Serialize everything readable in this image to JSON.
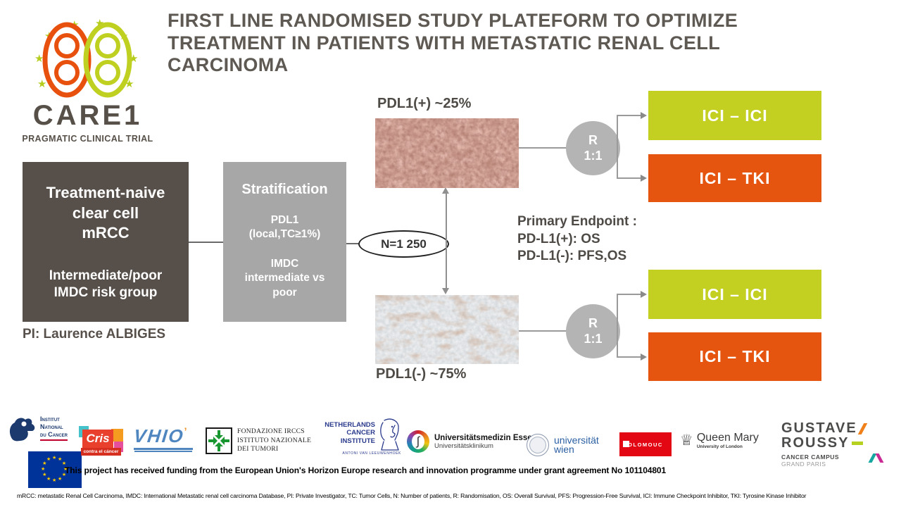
{
  "title": "FIRST LINE RANDOMISED STUDY PLATEFORM TO OPTIMIZE\nTREATMENT IN PATIENTS WITH METASTATIC RENAL CELL\nCARCINOMA",
  "care1": {
    "wordmark": "CARE1",
    "tagline": "PRAGMATIC CLINICAL TRIAL"
  },
  "flow": {
    "population": {
      "title": "Treatment-naive\nclear cell\nmRCC",
      "subtitle": "Intermediate/poor\nIMDC risk group"
    },
    "pi": "PI: Laurence ALBIGES",
    "stratification": {
      "title": "Stratification",
      "factor1": "PDL1\n(local,TC≥1%)",
      "factor2": "IMDC\nintermediate vs\npoor"
    },
    "sample_size": "N=1 250",
    "pdl1_positive": {
      "label": "PDL1(+) ~25%",
      "randomization": "R\n1:1",
      "arm1": "ICI – ICI",
      "arm2": "ICI – TKI"
    },
    "pdl1_negative": {
      "label": "PDL1(-) ~75%",
      "randomization": "R\n1:1",
      "arm1": "ICI – ICI",
      "arm2": "ICI – TKI"
    },
    "endpoint": "Primary Endpoint :\nPD-L1(+): OS\nPD-L1(-): PFS,OS",
    "colors": {
      "arm_ici_ici": "#c3d021",
      "arm_ici_tki": "#e65510",
      "population_box": "#57504a",
      "stratification_box": "#a7a7a7",
      "randomization_circle": "#b4b4b4",
      "title_text": "#5e5952"
    }
  },
  "partners": {
    "inca": {
      "line1": "Institut",
      "line2": "National",
      "line3": "du Cancer"
    },
    "cris": {
      "wordmark": "Cris",
      "tagline": "contra el cáncer"
    },
    "vhio": {
      "wordmark": "VHIO"
    },
    "int_milano": {
      "line1": "FONDAZIONE IRCCS",
      "line2": "ISTITUTO NAZIONALE",
      "line3": "DEI TUMORI"
    },
    "nki": {
      "line1": "NETHERLANDS",
      "line2": "CANCER",
      "line3": "INSTITUTE",
      "sub": "ANTONI VAN LEEUWENHOEK"
    },
    "essen": {
      "line1": "Universitätsmedizin Essen",
      "line2": "Universitätsklinikum"
    },
    "wien": {
      "lines": "universität\nwien"
    },
    "olomouc": {
      "label": "OLOMOUC"
    },
    "qmul": {
      "line1": "Queen Mary",
      "line2": "University of London"
    },
    "gustave_roussy": {
      "line1": "GUSTAVE",
      "line2": "ROUSSY",
      "line3": "CANCER CAMPUS",
      "line4": "GRAND PARIS"
    }
  },
  "footer": {
    "funding": "This project has received funding from the European Union's Horizon Europe research and innovation programme under grant agreement No 101104801",
    "abbreviations": "mRCC: metastatic Renal Cell Carcinoma, IMDC: International Metastatic renal cell carcinoma Database, PI: Private Investigator, TC: Tumor Cells, N: Number of patients, R: Randomisation, OS: Overall Survival, PFS: Progression-Free Survival, ICI: Immune Checkpoint Inhibitor, TKI: Tyrosine Kinase Inhibitor"
  }
}
